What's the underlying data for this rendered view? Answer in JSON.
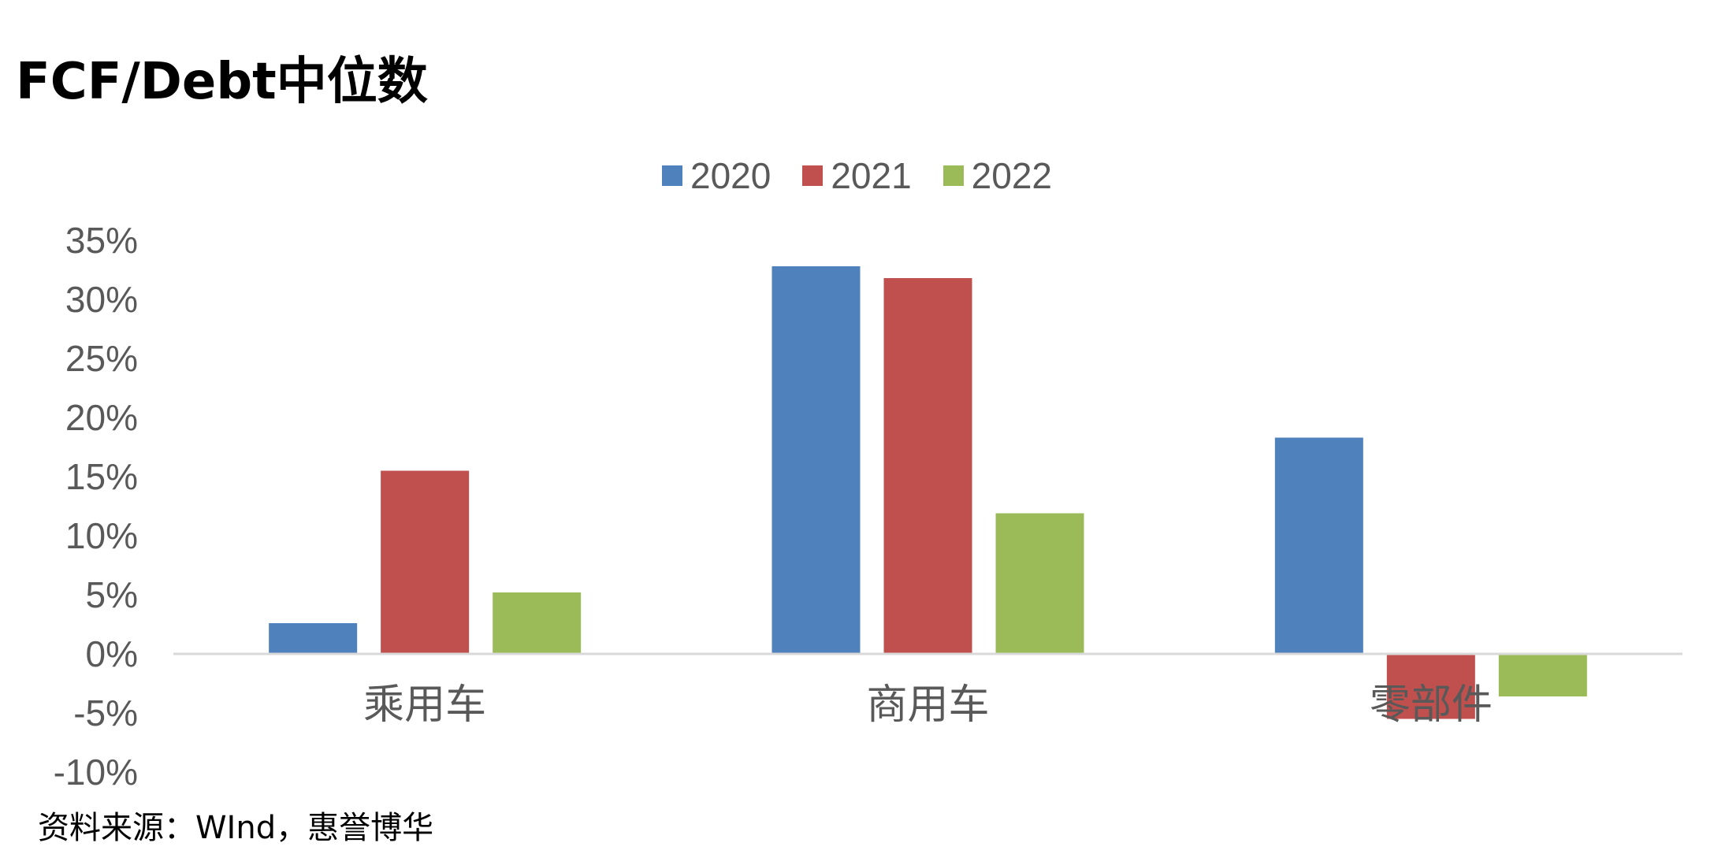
{
  "title": "FCF/Debt中位数",
  "source": "资料来源：WInd，惠誉博华",
  "chart_data": {
    "type": "bar",
    "title": "FCF/Debt中位数",
    "categories": [
      "乘用车",
      "商用车",
      "零部件"
    ],
    "series": [
      {
        "name": "2020",
        "color": "#4F81BD",
        "values": [
          2.6,
          32.8,
          18.3
        ]
      },
      {
        "name": "2021",
        "color": "#C0504D",
        "values": [
          15.5,
          31.8,
          -5.5
        ]
      },
      {
        "name": "2022",
        "color": "#9BBB59",
        "values": [
          5.2,
          11.9,
          -3.6
        ]
      }
    ],
    "yticks": [
      "35%",
      "30%",
      "25%",
      "20%",
      "15%",
      "10%",
      "5%",
      "0%",
      "-5%",
      "-10%"
    ],
    "ylim": [
      -10,
      35
    ],
    "legend_position": "top",
    "grid": false
  }
}
